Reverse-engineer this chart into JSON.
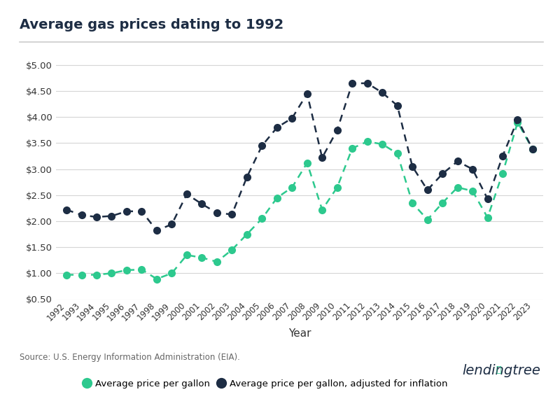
{
  "title": "Average gas prices dating to 1992",
  "xlabel": "Year",
  "source": "Source: U.S. Energy Information Administration (EIA).",
  "years": [
    1992,
    1993,
    1994,
    1995,
    1996,
    1997,
    1998,
    1999,
    2000,
    2001,
    2002,
    2003,
    2004,
    2005,
    2006,
    2007,
    2008,
    2009,
    2010,
    2011,
    2012,
    2013,
    2014,
    2015,
    2016,
    2017,
    2018,
    2019,
    2020,
    2021,
    2022,
    2023
  ],
  "avg_price": [
    0.97,
    0.97,
    0.97,
    1.0,
    1.06,
    1.07,
    0.89,
    1.0,
    1.35,
    1.3,
    1.22,
    1.45,
    1.75,
    2.05,
    2.45,
    2.65,
    3.12,
    2.22,
    2.65,
    3.4,
    3.53,
    3.48,
    3.3,
    2.35,
    2.03,
    2.35,
    2.65,
    2.58,
    2.07,
    2.92,
    3.9,
    3.38
  ],
  "adj_price": [
    2.22,
    2.12,
    2.08,
    2.1,
    2.19,
    2.19,
    1.82,
    1.94,
    2.52,
    2.33,
    2.16,
    2.13,
    2.85,
    3.45,
    3.8,
    3.98,
    4.45,
    3.22,
    3.75,
    4.65,
    4.65,
    4.47,
    4.22,
    3.05,
    2.6,
    2.91,
    3.15,
    3.0,
    2.43,
    3.25,
    3.95,
    3.38
  ],
  "green_color": "#2dc98e",
  "dark_color": "#1d2d44",
  "bg_color": "#ffffff",
  "ylim": [
    0.5,
    5.1
  ],
  "yticks": [
    0.5,
    1.0,
    1.5,
    2.0,
    2.5,
    3.0,
    3.5,
    4.0,
    4.5,
    5.0
  ],
  "legend_label_green": "Average price per gallon",
  "legend_label_dark": "Average price per gallon, adjusted for inflation",
  "title_color": "#1d2d44",
  "source_color": "#666666"
}
